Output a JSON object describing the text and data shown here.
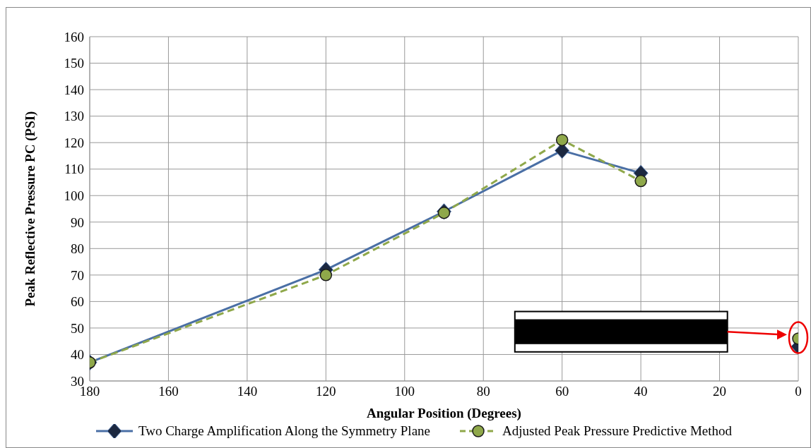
{
  "chart_data": {
    "type": "line",
    "xlabel": "Angular Position (Degrees)",
    "ylabel": "Peak Reflective Pressure PC (PSI)",
    "x": [
      180,
      120,
      90,
      60,
      40,
      20,
      0
    ],
    "xlim": [
      180,
      0
    ],
    "xticks": [
      180,
      160,
      140,
      120,
      100,
      80,
      60,
      40,
      20,
      0
    ],
    "ylim": [
      30,
      160
    ],
    "yticks": [
      30,
      40,
      50,
      60,
      70,
      80,
      90,
      100,
      110,
      120,
      130,
      140,
      150,
      160
    ],
    "grid": true,
    "legend": "bottom",
    "series": [
      {
        "name": "Two Charge Amplification Along the Symmetry Plane",
        "color": "#4a6fa5",
        "marker": "diamond",
        "line_style": "solid",
        "values": [
          37,
          72,
          94,
          117,
          108.5,
          null,
          43
        ]
      },
      {
        "name": "Adjusted Peak Pressure Predictive Method",
        "color": "#8fa84a",
        "marker": "circle",
        "line_style": "dashed",
        "values": [
          37,
          70,
          93.5,
          121,
          105.5,
          null,
          46
        ]
      }
    ]
  }
}
